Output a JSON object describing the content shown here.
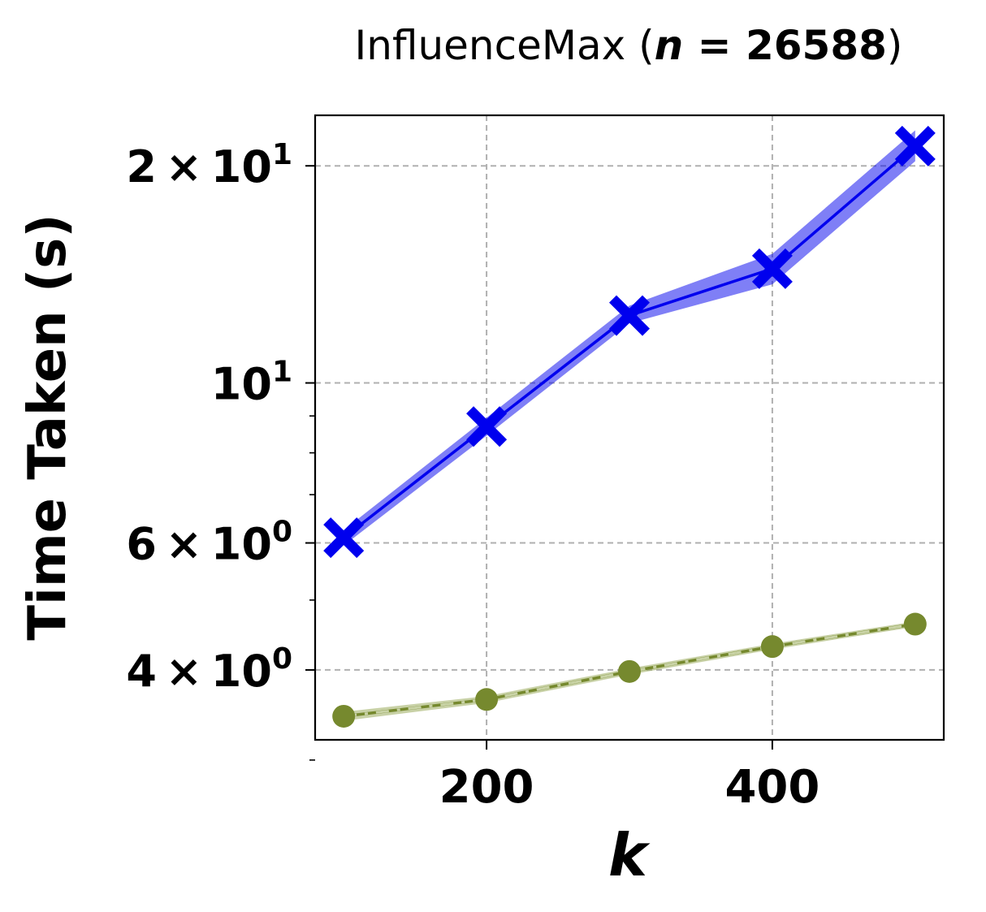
{
  "chart_data": {
    "type": "line",
    "title": {
      "prefix": "InfluenceMax (",
      "var": "n",
      "eq": " = ",
      "value": "26588",
      "suffix": ")"
    },
    "xlabel": "k",
    "ylabel": "Time Taken (s)",
    "x_scale": "linear",
    "y_scale": "log",
    "xlim": [
      80,
      520
    ],
    "ylim": [
      3.2,
      23.5
    ],
    "x_ticks": [
      {
        "value": 200,
        "label": "200"
      },
      {
        "value": 400,
        "label": "400"
      }
    ],
    "y_ticks": [
      {
        "value": 4,
        "mantissa": "4",
        "times": "×",
        "base": "10",
        "exp": "0"
      },
      {
        "value": 6,
        "mantissa": "6",
        "times": "×",
        "base": "10",
        "exp": "0"
      },
      {
        "value": 10,
        "mantissa": "",
        "times": "",
        "base": "10",
        "exp": "1"
      },
      {
        "value": 20,
        "mantissa": "2",
        "times": "×",
        "base": "10",
        "exp": "1"
      }
    ],
    "y_minor_ticks": [
      3,
      5,
      7,
      8,
      9
    ],
    "grid": true,
    "x": [
      100,
      200,
      300,
      400,
      500
    ],
    "series": [
      {
        "color": "#0000ee",
        "band_color": "#0000ee",
        "marker": "x-filled",
        "values": [
          6.1,
          8.7,
          12.4,
          14.4,
          21.3
        ],
        "lower": [
          5.95,
          8.45,
          12.1,
          13.7,
          20.3
        ],
        "upper": [
          6.25,
          8.95,
          12.8,
          15.1,
          22.4
        ]
      },
      {
        "color": "#76892e",
        "band_color": "#9aab5c",
        "marker": "circle",
        "values": [
          3.45,
          3.64,
          3.98,
          4.31,
          4.63
        ],
        "lower": [
          3.4,
          3.6,
          3.94,
          4.27,
          4.59
        ],
        "upper": [
          3.5,
          3.68,
          4.02,
          4.35,
          4.67
        ],
        "dashed_overlay_color": "#c9d3a6"
      }
    ]
  }
}
